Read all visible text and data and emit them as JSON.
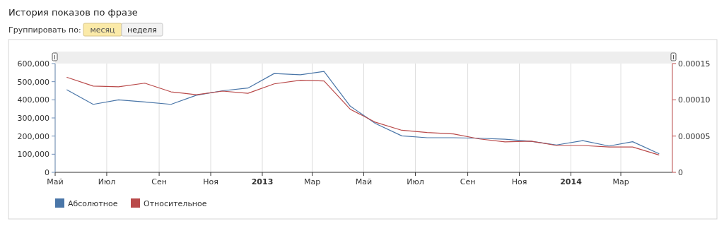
{
  "chart_data": {
    "type": "line",
    "title": "История показов по фразе",
    "annotations": [
      "Группировать по:",
      "месяц",
      "неделя"
    ],
    "x": [
      "2012-05-15",
      "2012-06-15",
      "2012-07-15",
      "2012-08-15",
      "2012-09-15",
      "2012-10-15",
      "2012-11-15",
      "2012-12-15",
      "2013-01-15",
      "2013-02-15",
      "2013-03-15",
      "2013-04-15",
      "2013-05-15",
      "2013-06-15",
      "2013-07-15",
      "2013-08-15",
      "2013-09-15",
      "2013-10-15",
      "2013-11-15",
      "2013-12-15",
      "2014-01-15",
      "2014-02-15",
      "2014-03-15",
      "2014-04-15"
    ],
    "series": [
      {
        "name": "Абсолютное",
        "color": "#4a76a8",
        "values": [
          455000,
          375000,
          400000,
          388000,
          375000,
          425000,
          450000,
          465000,
          545000,
          538000,
          557000,
          365000,
          269000,
          201000,
          191000,
          191000,
          188000,
          183000,
          171000,
          151000,
          175000,
          145000,
          169000,
          103000
        ]
      },
      {
        "name": "Относительное",
        "color": "#b94a4a",
        "axis": "y2",
        "values": [
          0.000131,
          0.000119,
          0.000118,
          0.000123,
          0.000111,
          0.000107,
          0.000112,
          0.000109,
          0.000122,
          0.000127,
          0.000126,
          8.7e-05,
          6.9e-05,
          5.8e-05,
          5.5e-05,
          5.3e-05,
          4.6e-05,
          4.2e-05,
          4.3e-05,
          3.7e-05,
          3.7e-05,
          3.5e-05,
          3.5e-05,
          2.4e-05
        ]
      }
    ],
    "xlim": [
      "2012-05-01",
      "2014-05-01"
    ],
    "xticks": [
      {
        "value": "2012-05-01",
        "label": "Май"
      },
      {
        "value": "2012-07-01",
        "label": "Июл"
      },
      {
        "value": "2012-09-01",
        "label": "Сен"
      },
      {
        "value": "2012-11-01",
        "label": "Ноя"
      },
      {
        "value": "2013-01-01",
        "label": "2013"
      },
      {
        "value": "2013-03-01",
        "label": "Мар"
      },
      {
        "value": "2013-05-01",
        "label": "Май"
      },
      {
        "value": "2013-07-01",
        "label": "Июл"
      },
      {
        "value": "2013-09-01",
        "label": "Сен"
      },
      {
        "value": "2013-11-01",
        "label": "Ноя"
      },
      {
        "value": "2014-01-01",
        "label": "2014"
      },
      {
        "value": "2014-03-01",
        "label": "Мар"
      }
    ],
    "ylim": [
      0,
      600000
    ],
    "yticks": [
      0,
      {
        "value": 100000,
        "label": "100,000"
      },
      {
        "value": 200000,
        "label": "200,000"
      },
      {
        "value": 300000,
        "label": "300,000"
      },
      {
        "value": 400000,
        "label": "400,000"
      },
      {
        "value": 500000,
        "label": "500,000"
      },
      {
        "value": 600000,
        "label": "600,000"
      }
    ],
    "y2lim": [
      0,
      0.00015
    ],
    "y2ticks": [
      0,
      {
        "value": 5e-05,
        "label": "0.00005"
      },
      {
        "value": 0.0001,
        "label": "0.00010"
      },
      {
        "value": 0.00015,
        "label": "0.00015"
      }
    ],
    "grid": "x",
    "legend": "bottom left",
    "marker": "none",
    "line_style": "solid"
  }
}
